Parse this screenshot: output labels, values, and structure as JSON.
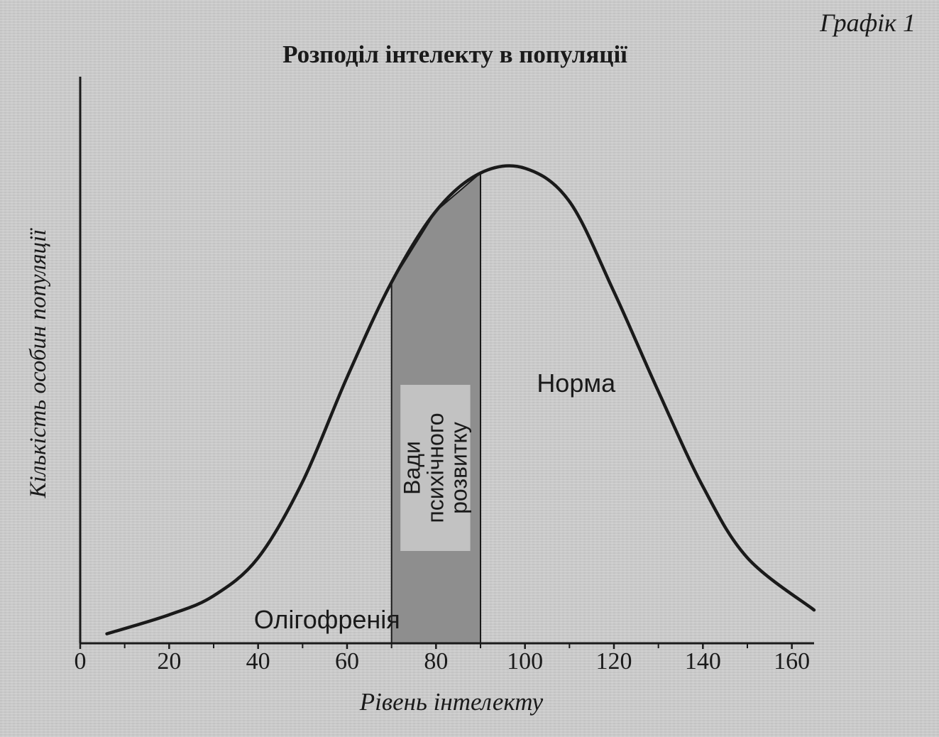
{
  "figure_label": "Графік 1",
  "chart_data": {
    "type": "area",
    "title": "Розподіл інтелекту в популяції",
    "xlabel": "Рівень інтелекту",
    "ylabel": "Кількість особин популяції",
    "xlim": [
      0,
      165
    ],
    "x_ticks": [
      0,
      20,
      40,
      60,
      80,
      100,
      120,
      140,
      160
    ],
    "x_minor_ticks": [
      10,
      30,
      50,
      70,
      90,
      110,
      130,
      150
    ],
    "ylim": [
      0,
      1
    ],
    "y_ticks": [],
    "grid": false,
    "series": [
      {
        "x": [
          6,
          20,
          30,
          40,
          50,
          60,
          70,
          80,
          90,
          100,
          110,
          120,
          130,
          140,
          150,
          165
        ],
        "y": [
          0.02,
          0.06,
          0.1,
          0.18,
          0.34,
          0.56,
          0.76,
          0.91,
          0.99,
          1.0,
          0.93,
          0.74,
          0.53,
          0.33,
          0.18,
          0.07
        ]
      }
    ],
    "regions": [
      {
        "label": "Олігофренія",
        "x_range": [
          6,
          70
        ],
        "shaded": false
      },
      {
        "label": "Вади психічного розвитку",
        "x_range": [
          70,
          90
        ],
        "shaded": true,
        "fill": "#8e8e8e"
      },
      {
        "label": "Норма",
        "x_range": [
          90,
          165
        ],
        "shaded": false
      }
    ],
    "colors": {
      "curve": "#1a1a1a",
      "axis": "#1a1a1a",
      "shade": "#8e8e8e",
      "label_box": "#c2c2c2"
    }
  }
}
